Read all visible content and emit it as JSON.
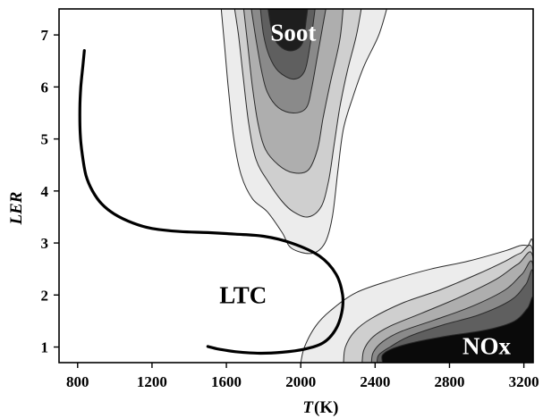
{
  "chart_data": {
    "type": "contour",
    "xlabel": "T",
    "xlabel_unit": "(K)",
    "ylabel": "LER",
    "xlim": [
      700,
      3250
    ],
    "ylim": [
      0.7,
      7.5
    ],
    "x_ticks": [
      "800",
      "1200",
      "1600",
      "2000",
      "2400",
      "2800",
      "3200"
    ],
    "y_ticks": [
      "1",
      "2",
      "3",
      "4",
      "5",
      "6",
      "7"
    ],
    "grid": false,
    "annotations": [
      {
        "text": "Soot",
        "x": 1960,
        "y": 7.0,
        "color": "#ffffff"
      },
      {
        "text": "LTC",
        "x": 1690,
        "y": 1.95,
        "color": "#000000"
      },
      {
        "text": "NOx",
        "x": 3000,
        "y": 0.97,
        "color": "#ffffff"
      }
    ],
    "soot_contour_levels": [
      {
        "level": 1,
        "color": "#ececec",
        "points": [
          [
            1570,
            7.6
          ],
          [
            1590,
            6.8
          ],
          [
            1610,
            6.0
          ],
          [
            1640,
            5.0
          ],
          [
            1680,
            4.3
          ],
          [
            1740,
            3.85
          ],
          [
            1820,
            3.6
          ],
          [
            1900,
            3.2
          ],
          [
            1950,
            2.9
          ],
          [
            2060,
            2.8
          ],
          [
            2130,
            3.0
          ],
          [
            2170,
            3.5
          ],
          [
            2200,
            4.4
          ],
          [
            2230,
            5.2
          ],
          [
            2280,
            5.8
          ],
          [
            2340,
            6.4
          ],
          [
            2420,
            7.0
          ],
          [
            2470,
            7.6
          ]
        ]
      },
      {
        "level": 2,
        "color": "#cfcfcf",
        "points": [
          [
            1640,
            7.6
          ],
          [
            1665,
            7.0
          ],
          [
            1690,
            6.2
          ],
          [
            1720,
            5.3
          ],
          [
            1760,
            4.6
          ],
          [
            1830,
            4.15
          ],
          [
            1900,
            3.8
          ],
          [
            1960,
            3.6
          ],
          [
            2040,
            3.5
          ],
          [
            2110,
            3.7
          ],
          [
            2150,
            4.2
          ],
          [
            2180,
            4.9
          ],
          [
            2210,
            5.6
          ],
          [
            2250,
            6.3
          ],
          [
            2300,
            7.0
          ],
          [
            2330,
            7.6
          ]
        ]
      },
      {
        "level": 3,
        "color": "#aeaeae",
        "points": [
          [
            1690,
            7.6
          ],
          [
            1715,
            6.8
          ],
          [
            1740,
            6.0
          ],
          [
            1770,
            5.3
          ],
          [
            1810,
            4.8
          ],
          [
            1880,
            4.5
          ],
          [
            1960,
            4.35
          ],
          [
            2040,
            4.4
          ],
          [
            2090,
            4.8
          ],
          [
            2120,
            5.4
          ],
          [
            2160,
            6.1
          ],
          [
            2210,
            6.9
          ],
          [
            2230,
            7.6
          ]
        ]
      },
      {
        "level": 4,
        "color": "#8a8a8a",
        "points": [
          [
            1730,
            7.6
          ],
          [
            1760,
            6.9
          ],
          [
            1790,
            6.3
          ],
          [
            1820,
            5.9
          ],
          [
            1880,
            5.6
          ],
          [
            1960,
            5.5
          ],
          [
            2030,
            5.6
          ],
          [
            2060,
            6.0
          ],
          [
            2090,
            6.6
          ],
          [
            2120,
            7.2
          ],
          [
            2140,
            7.6
          ]
        ]
      },
      {
        "level": 5,
        "color": "#5f5f5f",
        "points": [
          [
            1780,
            7.6
          ],
          [
            1800,
            7.0
          ],
          [
            1830,
            6.6
          ],
          [
            1880,
            6.3
          ],
          [
            1960,
            6.15
          ],
          [
            2020,
            6.3
          ],
          [
            2050,
            6.8
          ],
          [
            2070,
            7.3
          ],
          [
            2080,
            7.6
          ]
        ]
      },
      {
        "level": 6,
        "color": "#1e1e1e",
        "points": [
          [
            1820,
            7.6
          ],
          [
            1850,
            7.0
          ],
          [
            1900,
            6.75
          ],
          [
            1960,
            6.7
          ],
          [
            2010,
            6.85
          ],
          [
            2030,
            7.3
          ],
          [
            2040,
            7.6
          ]
        ]
      }
    ],
    "nox_contour_levels": [
      {
        "level": 1,
        "color": "#ececec",
        "points": [
          [
            2000,
            0.7
          ],
          [
            2020,
            1.0
          ],
          [
            2080,
            1.4
          ],
          [
            2160,
            1.7
          ],
          [
            2300,
            2.05
          ],
          [
            2500,
            2.3
          ],
          [
            2700,
            2.5
          ],
          [
            2900,
            2.65
          ],
          [
            3100,
            2.85
          ],
          [
            3180,
            2.95
          ],
          [
            3220,
            2.95
          ],
          [
            3250,
            2.9
          ],
          [
            3250,
            0.7
          ]
        ]
      },
      {
        "level": 2,
        "color": "#cfcfcf",
        "points": [
          [
            2230,
            0.7
          ],
          [
            2240,
            1.0
          ],
          [
            2290,
            1.3
          ],
          [
            2380,
            1.55
          ],
          [
            2550,
            1.85
          ],
          [
            2750,
            2.1
          ],
          [
            2950,
            2.4
          ],
          [
            3100,
            2.65
          ],
          [
            3180,
            2.8
          ],
          [
            3250,
            2.8
          ],
          [
            3250,
            0.7
          ]
        ]
      },
      {
        "level": 3,
        "color": "#aeaeae",
        "points": [
          [
            2330,
            0.7
          ],
          [
            2340,
            0.95
          ],
          [
            2390,
            1.2
          ],
          [
            2480,
            1.4
          ],
          [
            2650,
            1.65
          ],
          [
            2850,
            1.95
          ],
          [
            3050,
            2.3
          ],
          [
            3170,
            2.6
          ],
          [
            3250,
            2.7
          ],
          [
            3250,
            0.7
          ]
        ]
      },
      {
        "level": 4,
        "color": "#8a8a8a",
        "points": [
          [
            2380,
            0.7
          ],
          [
            2390,
            0.9
          ],
          [
            2440,
            1.1
          ],
          [
            2540,
            1.3
          ],
          [
            2720,
            1.52
          ],
          [
            2920,
            1.78
          ],
          [
            3100,
            2.1
          ],
          [
            3190,
            2.4
          ],
          [
            3250,
            2.55
          ],
          [
            3250,
            0.7
          ]
        ]
      },
      {
        "level": 5,
        "color": "#5f5f5f",
        "points": [
          [
            2410,
            0.7
          ],
          [
            2420,
            0.85
          ],
          [
            2480,
            1.0
          ],
          [
            2580,
            1.2
          ],
          [
            2760,
            1.42
          ],
          [
            2960,
            1.62
          ],
          [
            3130,
            1.9
          ],
          [
            3210,
            2.2
          ],
          [
            3250,
            2.4
          ],
          [
            3250,
            0.7
          ]
        ]
      },
      {
        "level": 6,
        "color": "#0a0a0a",
        "points": [
          [
            2440,
            0.7
          ],
          [
            2440,
            0.85
          ],
          [
            2500,
            0.98
          ],
          [
            2620,
            1.1
          ],
          [
            2800,
            1.22
          ],
          [
            3000,
            1.33
          ],
          [
            3150,
            1.5
          ],
          [
            3220,
            1.75
          ],
          [
            3250,
            1.9
          ],
          [
            3250,
            0.7
          ]
        ]
      }
    ],
    "ltc_boundary": [
      [
        836,
        6.7
      ],
      [
        828,
        6.4
      ],
      [
        817,
        6.0
      ],
      [
        812,
        5.6
      ],
      [
        814,
        5.1
      ],
      [
        825,
        4.7
      ],
      [
        845,
        4.3
      ],
      [
        880,
        4.0
      ],
      [
        930,
        3.75
      ],
      [
        1000,
        3.55
      ],
      [
        1100,
        3.38
      ],
      [
        1200,
        3.28
      ],
      [
        1350,
        3.22
      ],
      [
        1500,
        3.2
      ],
      [
        1650,
        3.17
      ],
      [
        1800,
        3.13
      ],
      [
        1950,
        3.0
      ],
      [
        2100,
        2.75
      ],
      [
        2190,
        2.4
      ],
      [
        2225,
        2.0
      ],
      [
        2220,
        1.65
      ],
      [
        2185,
        1.32
      ],
      [
        2120,
        1.08
      ],
      [
        2020,
        0.96
      ],
      [
        1900,
        0.9
      ],
      [
        1780,
        0.88
      ],
      [
        1650,
        0.91
      ],
      [
        1560,
        0.96
      ],
      [
        1500,
        1.01
      ]
    ]
  }
}
